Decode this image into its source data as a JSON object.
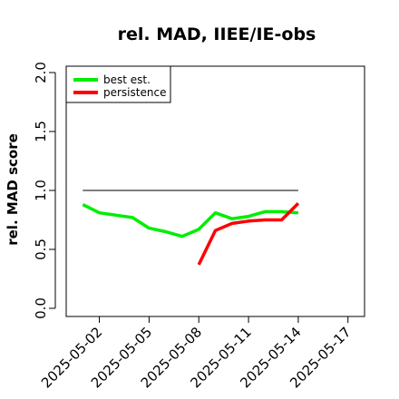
{
  "chart_data": {
    "type": "line",
    "title": "rel. MAD, IIEE/IE-obs",
    "ylabel": "rel. MAD score",
    "xlabel": "",
    "ylim": [
      0.0,
      2.0
    ],
    "yticks": [
      "0.0",
      "0.5",
      "1.0",
      "1.5",
      "2.0"
    ],
    "xrange": [
      "2025-04-30",
      "2025-05-18"
    ],
    "xticks": [
      "2025-05-02",
      "2025-05-05",
      "2025-05-08",
      "2025-05-11",
      "2025-05-14",
      "2025-05-17"
    ],
    "reference_line": {
      "value": 1.0,
      "from": "2025-05-01",
      "to": "2025-05-14",
      "color": "#555555"
    },
    "legend": {
      "position": "top-left",
      "box": true
    },
    "series": [
      {
        "name": "best est.",
        "color": "#00ee00",
        "points": [
          {
            "x": "2025-05-01",
            "y": 0.88
          },
          {
            "x": "2025-05-02",
            "y": 0.81
          },
          {
            "x": "2025-05-03",
            "y": 0.79
          },
          {
            "x": "2025-05-04",
            "y": 0.77
          },
          {
            "x": "2025-05-05",
            "y": 0.68
          },
          {
            "x": "2025-05-06",
            "y": 0.65
          },
          {
            "x": "2025-05-07",
            "y": 0.61
          },
          {
            "x": "2025-05-08",
            "y": 0.67
          },
          {
            "x": "2025-05-09",
            "y": 0.81
          },
          {
            "x": "2025-05-10",
            "y": 0.76
          },
          {
            "x": "2025-05-11",
            "y": 0.78
          },
          {
            "x": "2025-05-12",
            "y": 0.82
          },
          {
            "x": "2025-05-13",
            "y": 0.82
          },
          {
            "x": "2025-05-14",
            "y": 0.81
          }
        ]
      },
      {
        "name": "persistence",
        "color": "#ff0000",
        "points": [
          {
            "x": "2025-05-08",
            "y": 0.37
          },
          {
            "x": "2025-05-09",
            "y": 0.66
          },
          {
            "x": "2025-05-10",
            "y": 0.72
          },
          {
            "x": "2025-05-11",
            "y": 0.74
          },
          {
            "x": "2025-05-12",
            "y": 0.75
          },
          {
            "x": "2025-05-13",
            "y": 0.75
          },
          {
            "x": "2025-05-14",
            "y": 0.89
          }
        ]
      }
    ],
    "grid": false
  }
}
